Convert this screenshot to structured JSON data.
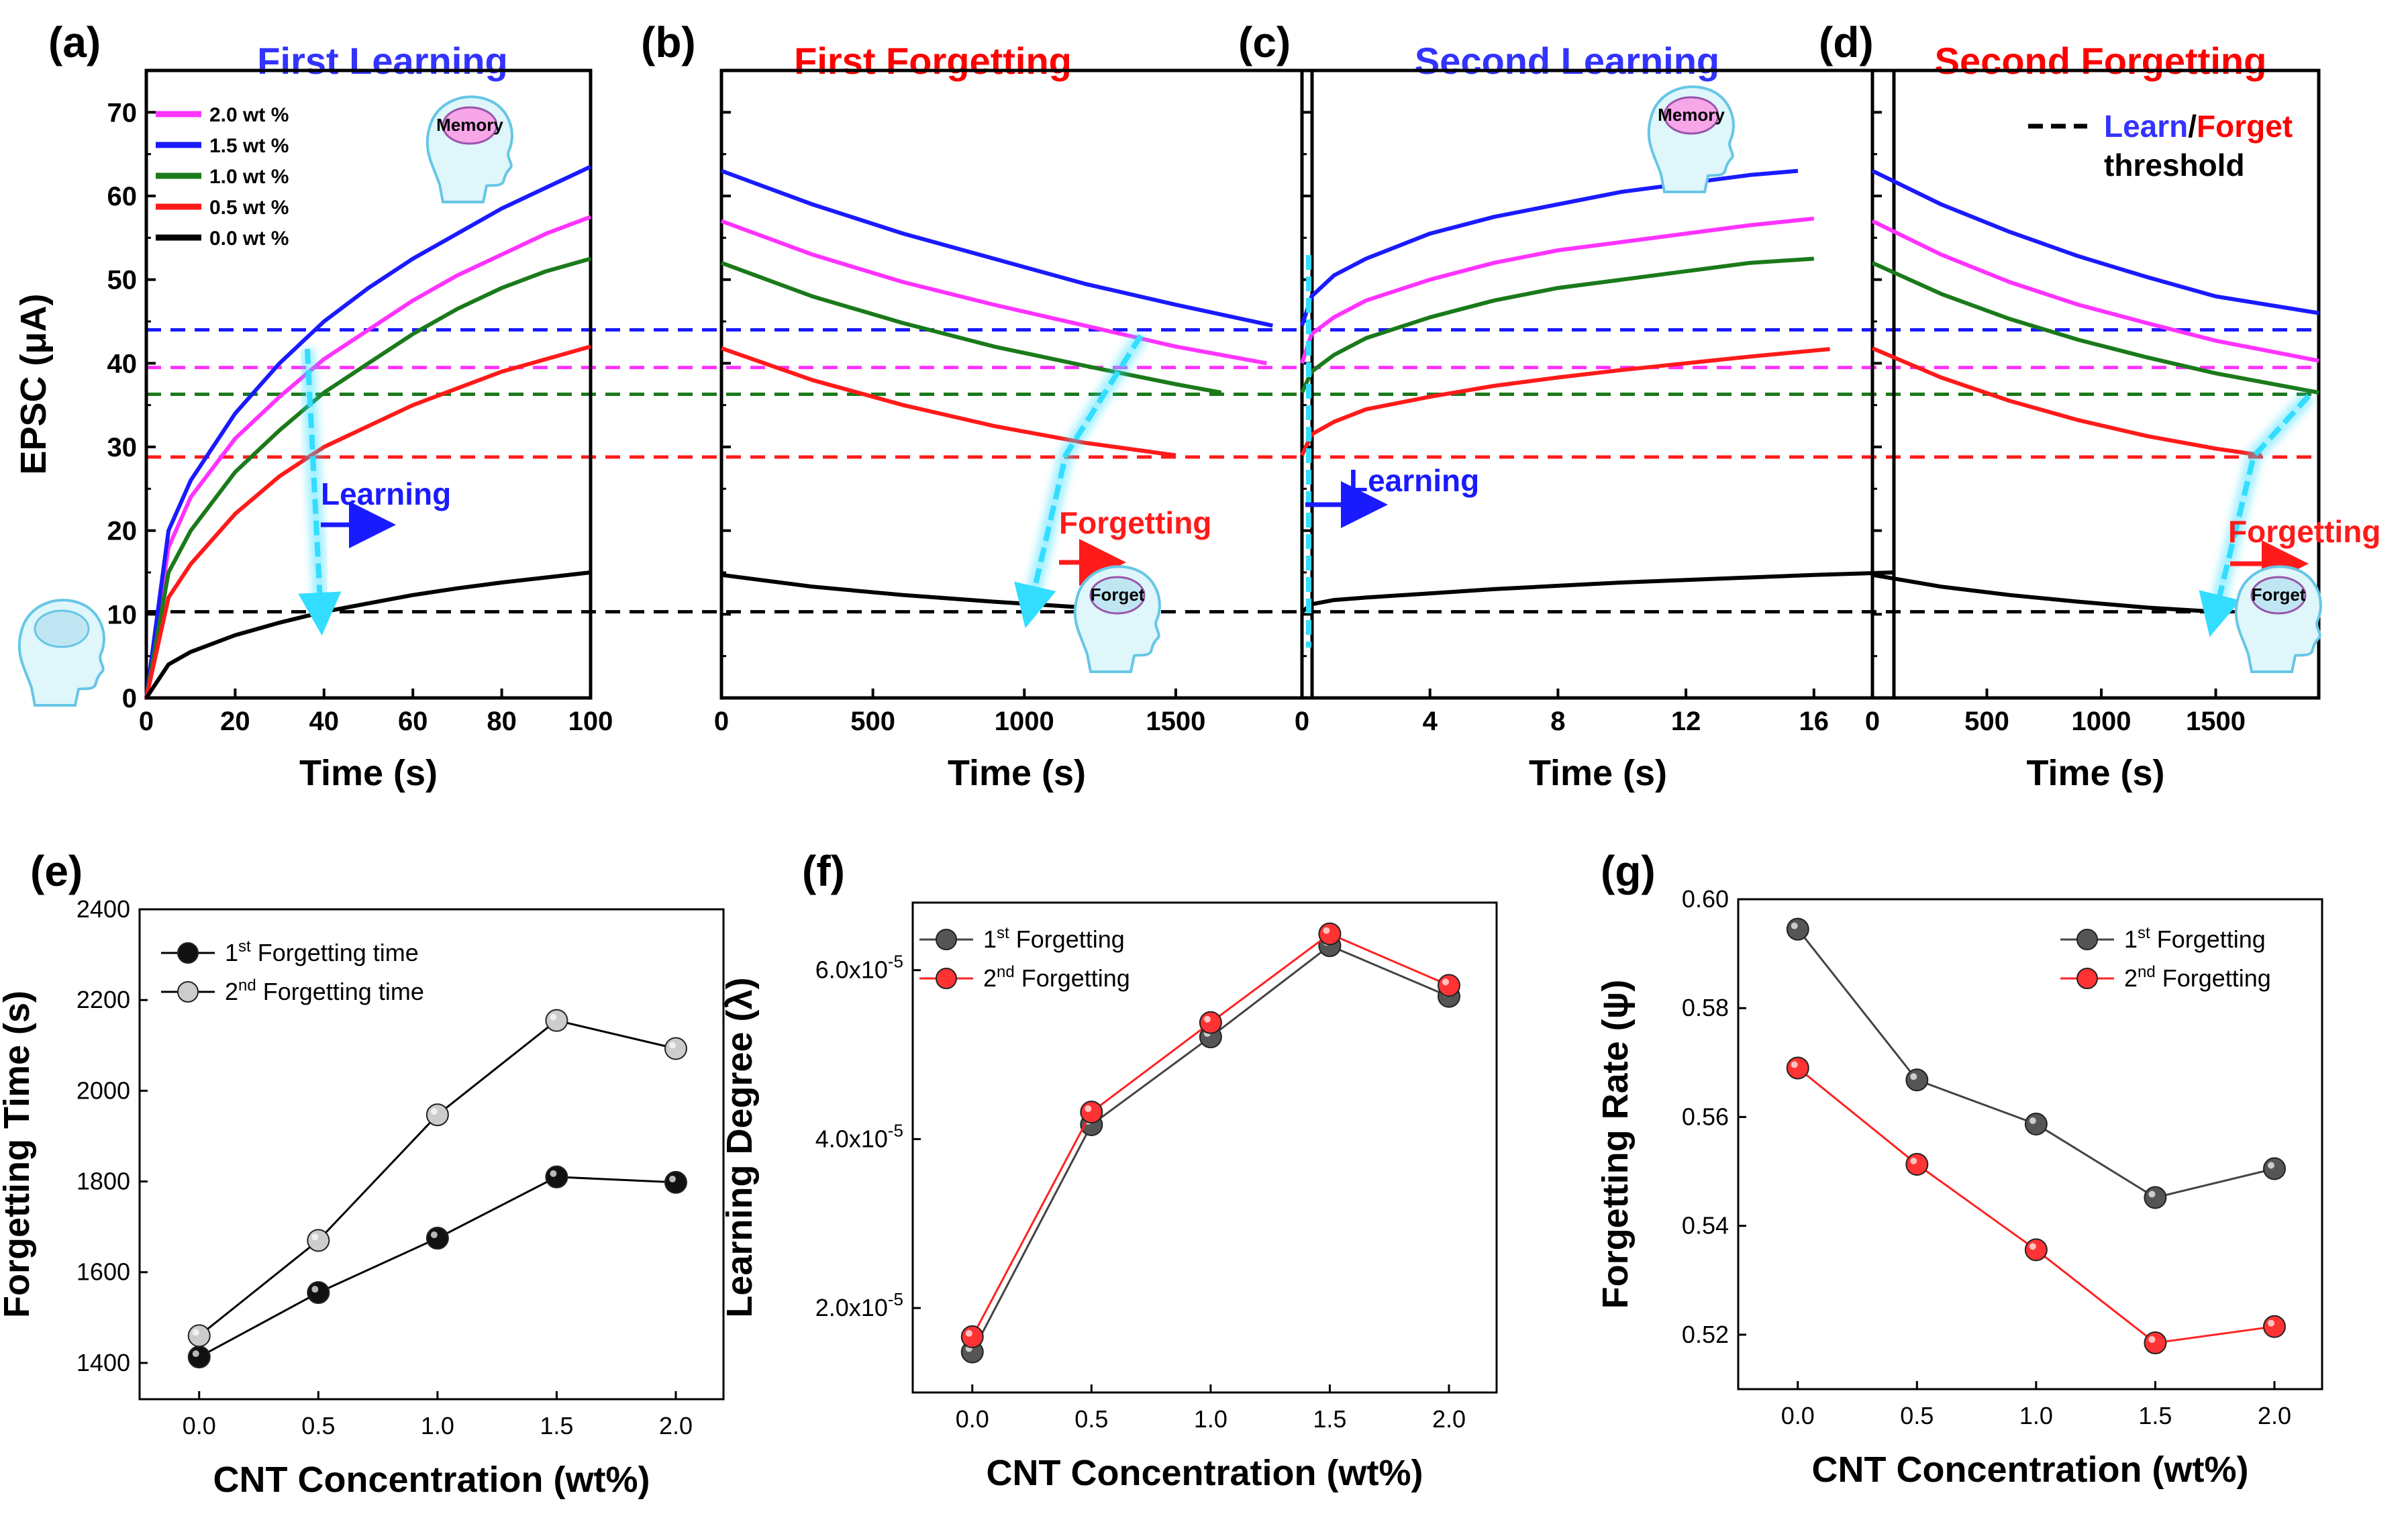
{
  "chart_data": [
    {
      "id": "a",
      "panel_label": "(a)",
      "type": "line",
      "title": "First Learning",
      "title_color": "#3333ff",
      "xlabel": "Time (s)",
      "ylabel": "EPSC (μA)",
      "xlim": [
        0,
        100
      ],
      "ylim": [
        0,
        75
      ],
      "xticks": [
        "0",
        "20",
        "40",
        "60",
        "80",
        "100"
      ],
      "yticks": [
        "0",
        "10",
        "20",
        "30",
        "40",
        "50",
        "60",
        "70"
      ],
      "legend": [
        "2.0 wt %",
        "1.5 wt %",
        "1.0 wt %",
        "0.5 wt %",
        "0.0 wt %"
      ],
      "series": [
        {
          "name": "2.0 wt %",
          "color": "#ff33ff",
          "x": [
            0,
            5,
            10,
            20,
            30,
            40,
            50,
            60,
            70,
            80,
            90,
            100
          ],
          "y": [
            0,
            18,
            24,
            31,
            36,
            40.5,
            44,
            47.5,
            50.5,
            53,
            55.5,
            57.5
          ]
        },
        {
          "name": "1.5 wt %",
          "color": "#1a1aff",
          "x": [
            0,
            5,
            10,
            20,
            30,
            40,
            50,
            60,
            70,
            80,
            90,
            100
          ],
          "y": [
            0,
            20,
            26,
            34,
            40,
            45,
            49,
            52.5,
            55.5,
            58.5,
            61,
            63.5
          ]
        },
        {
          "name": "1.0 wt %",
          "color": "#1a7a1a",
          "x": [
            0,
            5,
            10,
            20,
            30,
            40,
            50,
            60,
            70,
            80,
            90,
            100
          ],
          "y": [
            0,
            15,
            20,
            27,
            32,
            36.5,
            40,
            43.5,
            46.5,
            49,
            51,
            52.5
          ]
        },
        {
          "name": "0.5 wt %",
          "color": "#ff1a1a",
          "x": [
            0,
            5,
            10,
            20,
            30,
            40,
            50,
            60,
            70,
            80,
            90,
            100
          ],
          "y": [
            0,
            12,
            16,
            22,
            26.5,
            30,
            32.5,
            35,
            37,
            39,
            40.5,
            42
          ]
        },
        {
          "name": "0.0 wt %",
          "color": "#000000",
          "x": [
            0,
            5,
            10,
            20,
            30,
            40,
            50,
            60,
            70,
            80,
            90,
            100
          ],
          "y": [
            0,
            4,
            5.5,
            7.5,
            9,
            10.3,
            11.3,
            12.3,
            13.1,
            13.8,
            14.4,
            15
          ]
        }
      ],
      "annotations": {
        "arrow_text": "Learning"
      }
    },
    {
      "id": "b",
      "panel_label": "(b)",
      "type": "line",
      "title": "First Forgetting",
      "title_color": "#ff0000",
      "xlabel": "Time (s)",
      "xlim": [
        0,
        1950
      ],
      "ylim": [
        0,
        75
      ],
      "xticks": [
        "0",
        "500",
        "1000",
        "1500"
      ],
      "series": [
        {
          "name": "1.5 wt %",
          "color": "#1a1aff",
          "x": [
            0,
            300,
            600,
            900,
            1200,
            1500,
            1820
          ],
          "y": [
            63,
            59,
            55.5,
            52.5,
            49.5,
            47,
            44.5
          ]
        },
        {
          "name": "2.0 wt %",
          "color": "#ff33ff",
          "x": [
            0,
            300,
            600,
            900,
            1200,
            1500,
            1800
          ],
          "y": [
            57,
            53,
            49.7,
            47,
            44.5,
            42,
            40
          ]
        },
        {
          "name": "1.0 wt %",
          "color": "#1a7a1a",
          "x": [
            0,
            300,
            600,
            900,
            1200,
            1500,
            1650
          ],
          "y": [
            52,
            48,
            44.8,
            42,
            39.7,
            37.5,
            36.5
          ]
        },
        {
          "name": "0.5 wt %",
          "color": "#ff1a1a",
          "x": [
            0,
            300,
            600,
            900,
            1200,
            1500
          ],
          "y": [
            41.8,
            38,
            35,
            32.5,
            30.5,
            29
          ]
        },
        {
          "name": "0.0 wt %",
          "color": "#000000",
          "x": [
            0,
            300,
            600,
            900,
            1200,
            1400
          ],
          "y": [
            14.7,
            13.3,
            12.3,
            11.5,
            10.8,
            10.3
          ]
        }
      ],
      "annotations": {
        "arrow_text": "Forgetting"
      }
    },
    {
      "id": "c",
      "panel_label": "(c)",
      "type": "line",
      "title": "Second Learning",
      "title_color": "#3333ff",
      "xlabel": "Time (s)",
      "xlim": [
        0,
        18.5
      ],
      "ylim": [
        0,
        75
      ],
      "xticks": [
        "0",
        "4",
        "8",
        "12",
        "16"
      ],
      "series": [
        {
          "name": "1.5 wt %",
          "color": "#1a1aff",
          "x": [
            0,
            0.3,
            1,
            2,
            4,
            6,
            8,
            10,
            12,
            14,
            15.5
          ],
          "y": [
            44.5,
            48,
            50.5,
            52.5,
            55.5,
            57.5,
            59,
            60.5,
            61.5,
            62.5,
            63
          ]
        },
        {
          "name": "2.0 wt %",
          "color": "#ff33ff",
          "x": [
            0,
            0.3,
            1,
            2,
            4,
            6,
            8,
            10,
            12,
            14,
            16
          ],
          "y": [
            40,
            43.5,
            45.5,
            47.5,
            50,
            52,
            53.5,
            54.5,
            55.5,
            56.5,
            57.3
          ]
        },
        {
          "name": "1.0 wt %",
          "color": "#1a7a1a",
          "x": [
            0,
            0.3,
            1,
            2,
            4,
            6,
            8,
            10,
            12,
            14,
            16
          ],
          "y": [
            36.5,
            39,
            41,
            43,
            45.5,
            47.5,
            49,
            50,
            51,
            52,
            52.5
          ]
        },
        {
          "name": "0.5 wt %",
          "color": "#ff1a1a",
          "x": [
            0,
            0.3,
            1,
            2,
            4,
            6,
            8,
            10,
            12,
            14,
            16.5
          ],
          "y": [
            29,
            31.5,
            33,
            34.5,
            36,
            37.3,
            38.3,
            39.2,
            40,
            40.8,
            41.7
          ]
        },
        {
          "name": "0.0 wt %",
          "color": "#000000",
          "x": [
            0,
            0.3,
            1,
            2,
            4,
            6,
            8,
            10,
            12,
            14,
            16,
            18.5
          ],
          "y": [
            10.3,
            11.2,
            11.7,
            12,
            12.5,
            13,
            13.4,
            13.8,
            14.1,
            14.4,
            14.7,
            15
          ]
        }
      ],
      "annotations": {
        "arrow_text": "Learning"
      }
    },
    {
      "id": "d",
      "panel_label": "(d)",
      "type": "line",
      "title": "Second Forgetting",
      "title_color": "#ff0000",
      "xlabel": "Time (s)",
      "xlim": [
        0,
        1950
      ],
      "ylim": [
        0,
        75
      ],
      "xticks": [
        "0",
        "500",
        "1000",
        "1500"
      ],
      "legend_note": {
        "dash_label_learn": "Learn",
        "separator": "/",
        "dash_label_forget": "Forget",
        "line2": "threshold"
      },
      "series": [
        {
          "name": "1.5 wt %",
          "color": "#1a1aff",
          "x": [
            0,
            300,
            600,
            900,
            1200,
            1500,
            1950
          ],
          "y": [
            63,
            59,
            55.7,
            52.8,
            50.3,
            48,
            46
          ]
        },
        {
          "name": "2.0 wt %",
          "color": "#ff33ff",
          "x": [
            0,
            300,
            600,
            900,
            1200,
            1500,
            1950
          ],
          "y": [
            57,
            53,
            49.7,
            47,
            44.8,
            42.7,
            40.3
          ]
        },
        {
          "name": "1.0 wt %",
          "color": "#1a7a1a",
          "x": [
            0,
            300,
            600,
            900,
            1200,
            1500,
            1950
          ],
          "y": [
            52,
            48.3,
            45.3,
            42.8,
            40.7,
            38.8,
            36.5
          ]
        },
        {
          "name": "0.5 wt %",
          "color": "#ff1a1a",
          "x": [
            0,
            300,
            600,
            900,
            1200,
            1500,
            1700
          ],
          "y": [
            41.8,
            38.3,
            35.5,
            33.2,
            31.3,
            29.8,
            29
          ]
        },
        {
          "name": "0.0 wt %",
          "color": "#000000",
          "x": [
            0,
            300,
            600,
            900,
            1200,
            1500
          ],
          "y": [
            14.7,
            13.3,
            12.3,
            11.5,
            10.8,
            10.3
          ]
        }
      ],
      "annotations": {
        "arrow_text": "Forgetting"
      }
    },
    {
      "id": "e",
      "panel_label": "(e)",
      "type": "line",
      "xlabel": "CNT Concentration (wt%)",
      "ylabel": "Forgetting Time (s)",
      "categories": [
        "0.0",
        "0.5",
        "1.0",
        "1.5",
        "2.0"
      ],
      "x": [
        0,
        0.5,
        1.0,
        1.5,
        2.0
      ],
      "xlim": [
        -0.25,
        2.2
      ],
      "ylim": [
        1320,
        2400
      ],
      "yticks": [
        "1400",
        "1600",
        "1800",
        "2000",
        "2200",
        "2400"
      ],
      "series": [
        {
          "name": "1st Forgetting time",
          "leg_pre": "1",
          "leg_sup": "st",
          "leg_post": " Forgetting time",
          "color": "#000000",
          "marker_fill": "#111111",
          "values": [
            1413,
            1555,
            1675,
            1810,
            1798
          ]
        },
        {
          "name": "2nd Forgetting time",
          "leg_pre": "2",
          "leg_sup": "nd",
          "leg_post": " Forgetting time",
          "color": "#000000",
          "marker_fill": "#cccccc",
          "values": [
            1460,
            1670,
            1947,
            2155,
            2093
          ]
        }
      ]
    },
    {
      "id": "f",
      "panel_label": "(f)",
      "type": "line",
      "xlabel": "CNT Concentration (wt%)",
      "ylabel": "Learning Degree (λ)",
      "categories": [
        "0.0",
        "0.5",
        "1.0",
        "1.5",
        "2.0"
      ],
      "x": [
        0,
        0.5,
        1.0,
        1.5,
        2.0
      ],
      "xlim": [
        -0.25,
        2.2
      ],
      "ylim": [
        1e-05,
        6.8e-05
      ],
      "yticks": [
        {
          "mant": "2.0x10",
          "exp": "-5",
          "value": 2e-05
        },
        {
          "mant": "4.0x10",
          "exp": "-5",
          "value": 4e-05
        },
        {
          "mant": "6.0x10",
          "exp": "-5",
          "value": 6e-05
        }
      ],
      "series": [
        {
          "name": "1st Forgetting",
          "leg_pre": "1",
          "leg_sup": "st",
          "leg_post": " Forgetting",
          "color": "#444444",
          "marker_fill": "#555555",
          "values": [
            1.48e-05,
            4.17e-05,
            5.21e-05,
            6.29e-05,
            5.69e-05
          ]
        },
        {
          "name": "2nd Forgetting",
          "leg_pre": "2",
          "leg_sup": "nd",
          "leg_post": " Forgetting",
          "color": "#ff2222",
          "marker_fill": "#ff3333",
          "values": [
            1.66e-05,
            4.32e-05,
            5.38e-05,
            6.43e-05,
            5.82e-05
          ]
        }
      ]
    },
    {
      "id": "g",
      "panel_label": "(g)",
      "type": "line",
      "xlabel": "CNT Concentration (wt%)",
      "ylabel": "Forgetting Rate (ψ)",
      "categories": [
        "0.0",
        "0.5",
        "1.0",
        "1.5",
        "2.0"
      ],
      "x": [
        0,
        0.5,
        1.0,
        1.5,
        2.0
      ],
      "xlim": [
        -0.25,
        2.2
      ],
      "ylim": [
        0.51,
        0.6
      ],
      "yticks": [
        "0.52",
        "0.54",
        "0.56",
        "0.58",
        "0.60"
      ],
      "series": [
        {
          "name": "1st Forgetting",
          "leg_pre": "1",
          "leg_sup": "st",
          "leg_post": " Forgetting",
          "color": "#444444",
          "marker_fill": "#555555",
          "values": [
            0.5945,
            0.5668,
            0.5587,
            0.5452,
            0.5505
          ]
        },
        {
          "name": "2nd Forgetting",
          "leg_pre": "2",
          "leg_sup": "nd",
          "leg_post": " Forgetting",
          "color": "#ff2222",
          "marker_fill": "#ff3333",
          "values": [
            0.569,
            0.5513,
            0.5356,
            0.5185,
            0.5215
          ]
        }
      ]
    }
  ],
  "thresholds": [
    {
      "name": "1.5 wt %",
      "color": "#1a1aff",
      "value": 44
    },
    {
      "name": "2.0 wt %",
      "color": "#ff33ff",
      "value": 39.5
    },
    {
      "name": "1.0 wt %",
      "color": "#1a7a1a",
      "value": 36.3
    },
    {
      "name": "0.5 wt %",
      "color": "#ff1a1a",
      "value": 28.8
    },
    {
      "name": "0.0 wt %",
      "color": "#000000",
      "value": 10.3
    }
  ],
  "icons": {
    "memory_label": "Memory",
    "forget_label": "Forget"
  },
  "colors": {
    "accent_cyan": "#33ddff",
    "arrow_blue": "#1a1aff",
    "arrow_red": "#ff1a1a",
    "title_blue": "#3333ff",
    "title_red": "#ff0000"
  }
}
